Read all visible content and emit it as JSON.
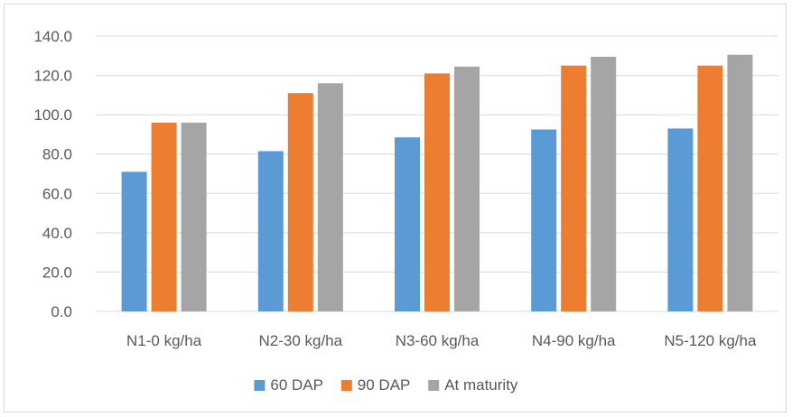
{
  "chart_data": {
    "type": "bar",
    "title": "",
    "xlabel": "",
    "ylabel": "",
    "categories": [
      "N1-0 kg/ha",
      "N2-30 kg/ha",
      "N3-60 kg/ha",
      "N4-90 kg/ha",
      "N5-120 kg/ha"
    ],
    "series": [
      {
        "name": "60 DAP",
        "color": "#5b9bd5",
        "values": [
          71.0,
          81.5,
          88.5,
          92.5,
          93.0
        ]
      },
      {
        "name": "90 DAP",
        "color": "#ed7d31",
        "values": [
          96.0,
          111.0,
          121.0,
          125.0,
          125.0
        ]
      },
      {
        "name": "At maturity",
        "color": "#a5a5a5",
        "values": [
          96.0,
          116.0,
          124.5,
          129.5,
          130.5
        ]
      }
    ],
    "ylim": [
      0,
      140
    ],
    "yticks": [
      "0.0",
      "20.0",
      "40.0",
      "60.0",
      "80.0",
      "100.0",
      "120.0",
      "140.0"
    ],
    "grid": true,
    "legend_position": "bottom"
  }
}
